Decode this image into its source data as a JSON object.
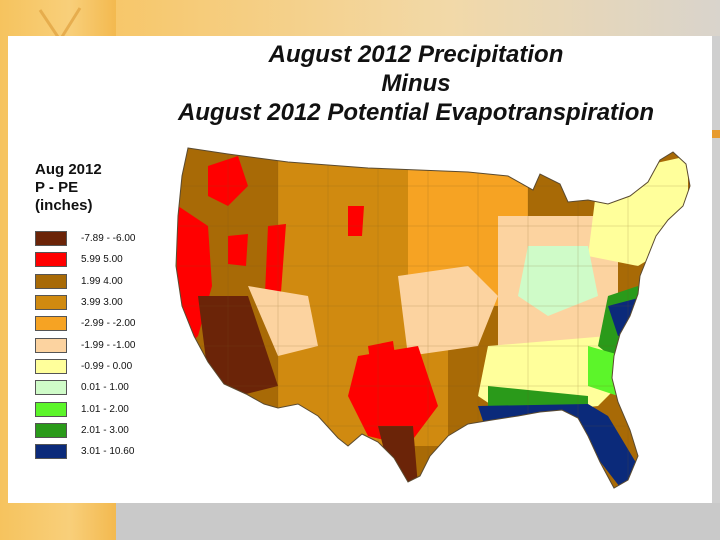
{
  "title_lines": [
    "August 2012 Precipitation",
    "Minus",
    "August 2012 Potential Evapotranspiration"
  ],
  "legend": {
    "title_lines": [
      "Aug 2012",
      "P - PE",
      "(inches)"
    ],
    "items": [
      {
        "label": "-7.89 - -6.00",
        "color": "#6b2408"
      },
      {
        "label": "5.99    5.00",
        "color": "#ff0000"
      },
      {
        "label": "1.99    4.00",
        "color": "#a86a06"
      },
      {
        "label": "3.99    3.00",
        "color": "#d08a10"
      },
      {
        "label": "-2.99 - -2.00",
        "color": "#f6a323"
      },
      {
        "label": "-1.99 - -1.00",
        "color": "#fcd3a0"
      },
      {
        "label": "-0.99 - 0.00",
        "color": "#ffff9b"
      },
      {
        "label": "0.01 - 1.00",
        "color": "#cffbc8"
      },
      {
        "label": "1.01 - 2.00",
        "color": "#5cf52a"
      },
      {
        "label": "2.01 - 3.00",
        "color": "#2a9a1a"
      },
      {
        "label": "3.01 - 10.60",
        "color": "#0b2a7a"
      }
    ]
  }
}
